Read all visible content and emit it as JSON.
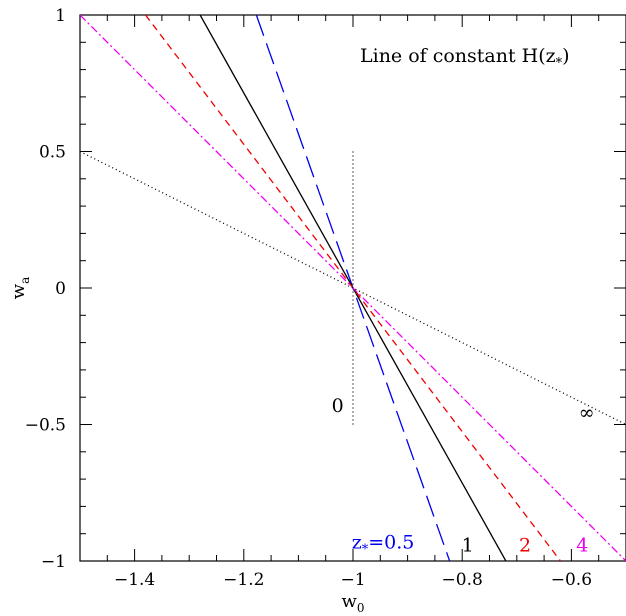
{
  "chart_data": {
    "type": "line",
    "title": "Line of constant H(z*)",
    "title_parts": {
      "main": "Line of constant H(z",
      "sub": "*",
      "close": ")"
    },
    "xlabel": {
      "main": "w",
      "sub": "0"
    },
    "ylabel": {
      "main": "w",
      "sub": "a"
    },
    "xlim": [
      -1.5,
      -0.5
    ],
    "ylim": [
      -1,
      1
    ],
    "xticks": [
      -1.4,
      -1.2,
      -1.0,
      -0.8,
      -0.6
    ],
    "xtick_labels": [
      "−1.4",
      "−1.2",
      "−1",
      "−0.8",
      "−0.6"
    ],
    "yticks": [
      -1,
      -0.5,
      0,
      0.5,
      1
    ],
    "ytick_labels": [
      "−1",
      "−0.5",
      "0",
      "0.5",
      "1"
    ],
    "grid": false,
    "series": [
      {
        "label": "0",
        "color": "#000000",
        "dash": "1,3",
        "points": [
          [
            -1.0,
            0.5
          ],
          [
            -1.0,
            -0.5
          ]
        ],
        "label_pos": [
          -1.028,
          -0.455
        ]
      },
      {
        "label": "0.5",
        "label_prefix": {
          "main": "z",
          "sub": "*",
          "eq": "="
        },
        "color": "#0000ee",
        "dash": "22,8",
        "points": [
          [
            -1.177,
            1.0
          ],
          [
            -0.823,
            -1.0
          ]
        ],
        "label_pos": [
          -0.945,
          -0.955
        ]
      },
      {
        "label": "1",
        "color": "#000000",
        "dash": "",
        "points": [
          [
            -1.28,
            1.0
          ],
          [
            -0.72,
            -1.0
          ]
        ],
        "label_pos": [
          -0.79,
          -0.965
        ]
      },
      {
        "label": "2",
        "color": "#ee0000",
        "dash": "7,5",
        "points": [
          [
            -1.38,
            1.0
          ],
          [
            -0.62,
            -1.0
          ]
        ],
        "label_pos": [
          -0.685,
          -0.965
        ]
      },
      {
        "label": "4",
        "color": "#ee00ee",
        "dash": "8,3,2,3",
        "points": [
          [
            -1.5,
            1.0
          ],
          [
            -0.5,
            -1.0
          ]
        ],
        "label_pos": [
          -0.58,
          -0.965
        ]
      },
      {
        "label": "∞",
        "color": "#000000",
        "dash": "1,3",
        "points": [
          [
            -1.5,
            0.5
          ],
          [
            -0.5,
            -0.5
          ]
        ],
        "label_pos": [
          -0.572,
          -0.48
        ]
      }
    ]
  }
}
